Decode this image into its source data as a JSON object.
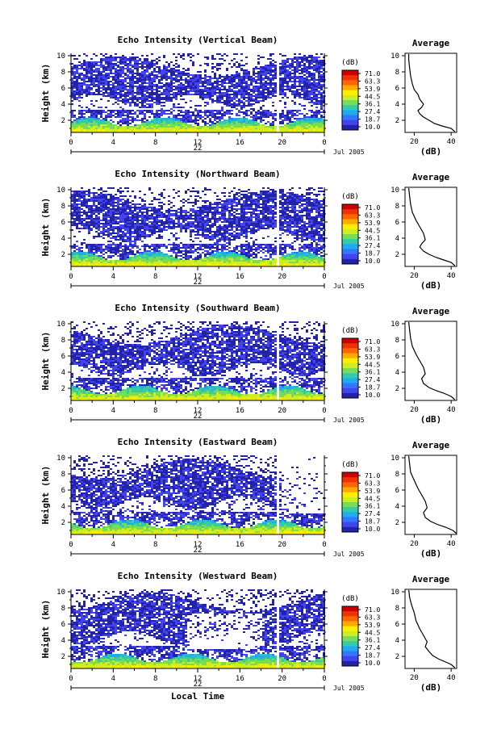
{
  "figure": {
    "date_label": "Jul 2005",
    "day_label": "22",
    "x_label": "Local Time",
    "x_ticks": [
      "0",
      "4",
      "8",
      "12",
      "16",
      "20",
      "0"
    ],
    "y_label": "Height (km)",
    "y_ticks": [
      "2",
      "4",
      "6",
      "8",
      "10"
    ],
    "colorbar": {
      "unit": "(dB)",
      "ticks": [
        "71.0",
        "63.3",
        "53.9",
        "44.5",
        "36.1",
        "27.4",
        "18.7",
        "10.0"
      ],
      "colors": [
        "#cc0000",
        "#ee3300",
        "#ff6600",
        "#ffaa00",
        "#ffee00",
        "#ccee22",
        "#77dd55",
        "#33ccaa",
        "#22aaee",
        "#3377ff",
        "#4444ee",
        "#2222aa"
      ]
    },
    "profile_title": "Average",
    "profile_x_label": "(dB)"
  },
  "panels": [
    {
      "title": "Echo Intensity (Vertical Beam)",
      "profile_xticks": [
        "20",
        "40"
      ]
    },
    {
      "title": "Echo Intensity (Northward Beam)",
      "profile_xticks": [
        "20",
        "40"
      ]
    },
    {
      "title": "Echo Intensity (Southward Beam)",
      "profile_xticks": [
        "20",
        "40"
      ]
    },
    {
      "title": "Echo Intensity (Eastward Beam)",
      "profile_xticks": [
        "20",
        "40"
      ]
    },
    {
      "title": "Echo Intensity (Westward Beam)",
      "profile_xticks": [
        "20",
        "40"
      ]
    }
  ],
  "chart_data": [
    {
      "type": "heatmap",
      "title": "Echo Intensity (Vertical Beam)",
      "xlabel": "",
      "ylabel": "Height (km)",
      "xlim": [
        0,
        24
      ],
      "ylim": [
        0.5,
        10.3
      ],
      "colorbar_range_dB": [
        10.0,
        71.0
      ],
      "description": "Time-height echo intensity; strongest echoes (~30-45 dB) below 2 km, weaker (~15-20 dB) patches up to ~9 km; data gap near 19.5 h."
    },
    {
      "type": "line",
      "title": "Average",
      "xlabel": "(dB)",
      "ylabel": "",
      "xlim": [
        15,
        43
      ],
      "ylim": [
        0.5,
        10.3
      ],
      "x": [
        17,
        17,
        17.5,
        18,
        19,
        20,
        22,
        23,
        25,
        24,
        22,
        23,
        25,
        28,
        31,
        35,
        40,
        42
      ],
      "y": [
        10.2,
        9.5,
        8.5,
        7.5,
        6.5,
        5.8,
        5.2,
        4.6,
        4.0,
        3.6,
        3.2,
        2.8,
        2.4,
        2.0,
        1.6,
        1.3,
        1.0,
        0.6
      ]
    },
    {
      "type": "heatmap",
      "title": "Echo Intensity (Northward Beam)",
      "xlabel": "",
      "ylabel": "Height (km)",
      "xlim": [
        0,
        24
      ],
      "ylim": [
        0.5,
        10.3
      ],
      "colorbar_range_dB": [
        10.0,
        71.0
      ],
      "description": "Strong low-level echoes below 2 km, patchy weak echoes aloft to ~10 km; data gap near 19.5 h."
    },
    {
      "type": "line",
      "title": "Average",
      "xlabel": "(dB)",
      "ylabel": "",
      "xlim": [
        15,
        43
      ],
      "ylim": [
        0.5,
        10.3
      ],
      "x": [
        17,
        17.5,
        18,
        19,
        21,
        23,
        25,
        26,
        24,
        23,
        25,
        28,
        32,
        36,
        40,
        42
      ],
      "y": [
        10.2,
        9.2,
        8.2,
        7.2,
        6.2,
        5.4,
        4.6,
        3.8,
        3.3,
        2.9,
        2.4,
        2.0,
        1.6,
        1.3,
        1.0,
        0.6
      ]
    },
    {
      "type": "heatmap",
      "title": "Echo Intensity (Southward Beam)",
      "xlabel": "",
      "ylabel": "Height (km)",
      "xlim": [
        0,
        24
      ],
      "ylim": [
        0.5,
        10.3
      ],
      "colorbar_range_dB": [
        10.0,
        71.0
      ],
      "description": "Strong low-level echoes below 2 km, widespread weak echoes aloft; data gap near 19.5 h."
    },
    {
      "type": "line",
      "title": "Average",
      "xlabel": "(dB)",
      "ylabel": "",
      "xlim": [
        15,
        43
      ],
      "ylim": [
        0.5,
        10.3
      ],
      "x": [
        17,
        17.5,
        18,
        19,
        21,
        23,
        25,
        26,
        24,
        25,
        28,
        32,
        36,
        40,
        42
      ],
      "y": [
        10.2,
        9.2,
        8.2,
        7.2,
        6.2,
        5.4,
        4.6,
        3.8,
        3.2,
        2.6,
        2.1,
        1.7,
        1.4,
        1.0,
        0.6
      ]
    },
    {
      "type": "heatmap",
      "title": "Echo Intensity (Eastward Beam)",
      "xlabel": "",
      "ylabel": "Height (km)",
      "xlim": [
        0,
        24
      ],
      "ylim": [
        0.5,
        10.3
      ],
      "colorbar_range_dB": [
        10.0,
        71.0
      ],
      "description": "Strong low-level echoes below 2 km, weak echoes aloft mainly before 18 h; sparse data after 19.5 h."
    },
    {
      "type": "line",
      "title": "Average",
      "xlabel": "(dB)",
      "ylabel": "",
      "xlim": [
        15,
        43
      ],
      "ylim": [
        0.5,
        10.3
      ],
      "x": [
        17,
        17.5,
        18,
        20,
        22,
        24,
        26,
        27,
        25,
        26,
        29,
        33,
        37,
        41,
        43
      ],
      "y": [
        10.2,
        9.2,
        8.2,
        7.2,
        6.2,
        5.4,
        4.6,
        3.8,
        3.2,
        2.6,
        2.1,
        1.7,
        1.4,
        1.0,
        0.6
      ]
    },
    {
      "type": "heatmap",
      "title": "Echo Intensity (Westward Beam)",
      "xlabel": "Local Time",
      "ylabel": "Height (km)",
      "xlim": [
        0,
        24
      ],
      "ylim": [
        0.5,
        10.3
      ],
      "colorbar_range_dB": [
        10.0,
        71.0
      ],
      "description": "Strong low-level echoes below 2 km, scattered weak echoes aloft; gap in mid-levels around 12-18 h; data gap near 19.5 h."
    },
    {
      "type": "line",
      "title": "Average",
      "xlabel": "(dB)",
      "ylabel": "",
      "xlim": [
        15,
        43
      ],
      "ylim": [
        0.5,
        10.3
      ],
      "x": [
        17,
        17.5,
        18.5,
        20,
        21,
        23,
        25,
        27,
        26,
        28,
        30,
        33,
        36,
        40,
        42
      ],
      "y": [
        10.2,
        9.3,
        8.4,
        7.4,
        6.4,
        5.4,
        4.6,
        3.8,
        3.2,
        2.6,
        2.1,
        1.7,
        1.4,
        1.0,
        0.6
      ]
    }
  ]
}
